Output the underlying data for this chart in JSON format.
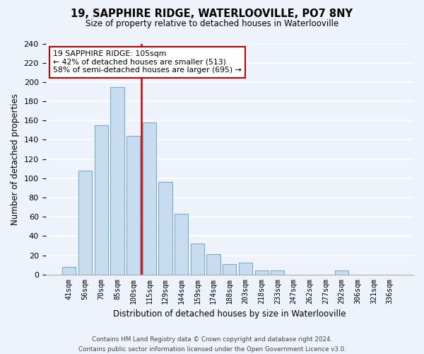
{
  "title": "19, SAPPHIRE RIDGE, WATERLOOVILLE, PO7 8NY",
  "subtitle": "Size of property relative to detached houses in Waterlooville",
  "xlabel": "Distribution of detached houses by size in Waterlooville",
  "ylabel": "Number of detached properties",
  "bar_labels": [
    "41sqm",
    "56sqm",
    "70sqm",
    "85sqm",
    "100sqm",
    "115sqm",
    "129sqm",
    "144sqm",
    "159sqm",
    "174sqm",
    "188sqm",
    "203sqm",
    "218sqm",
    "233sqm",
    "247sqm",
    "262sqm",
    "277sqm",
    "292sqm",
    "306sqm",
    "321sqm",
    "336sqm"
  ],
  "bar_values": [
    8,
    108,
    155,
    195,
    144,
    158,
    96,
    63,
    32,
    21,
    11,
    12,
    4,
    4,
    0,
    0,
    0,
    4,
    0,
    0,
    0
  ],
  "bar_color": "#c8dcf0",
  "bar_edge_color": "#7aabcc",
  "vline_color": "#cc0000",
  "annotation_title": "19 SAPPHIRE RIDGE: 105sqm",
  "annotation_line1": "← 42% of detached houses are smaller (513)",
  "annotation_line2": "58% of semi-detached houses are larger (695) →",
  "annotation_box_color": "#ffffff",
  "annotation_box_edge_color": "#cc0000",
  "ylim": [
    0,
    240
  ],
  "yticks": [
    0,
    20,
    40,
    60,
    80,
    100,
    120,
    140,
    160,
    180,
    200,
    220,
    240
  ],
  "footer_line1": "Contains HM Land Registry data © Crown copyright and database right 2024.",
  "footer_line2": "Contains public sector information licensed under the Open Government Licence v3.0.",
  "bg_color": "#eef2fb"
}
